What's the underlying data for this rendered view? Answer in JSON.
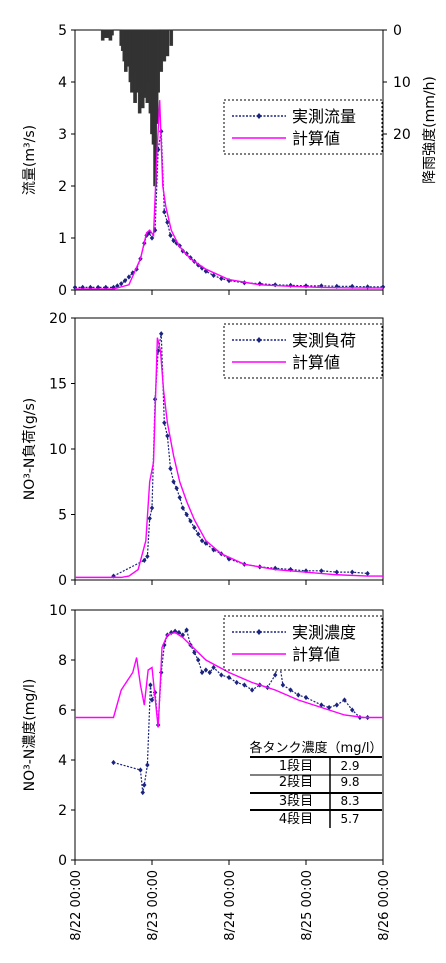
{
  "chart_data": [
    {
      "type": "line",
      "ylabel": "流量(m³/s)",
      "ylim": [
        0,
        5
      ],
      "yticks": [
        "0",
        "1",
        "2",
        "3",
        "4",
        "5"
      ],
      "y2label": "降雨強度(mm/h)",
      "y2lim": [
        0,
        50
      ],
      "y2ticks": [
        "0",
        "10",
        "20"
      ],
      "legend_position": "top-right",
      "series": [
        {
          "name": "実測流量",
          "color": "#1a237e",
          "marker": "diamond",
          "x": [
            0,
            0.1,
            0.2,
            0.3,
            0.4,
            0.5,
            0.55,
            0.6,
            0.65,
            0.7,
            0.75,
            0.8,
            0.85,
            0.9,
            0.93,
            0.96,
            1.0,
            1.04,
            1.08,
            1.12,
            1.16,
            1.2,
            1.24,
            1.28,
            1.32,
            1.36,
            1.4,
            1.45,
            1.5,
            1.55,
            1.6,
            1.65,
            1.7,
            1.8,
            1.9,
            2.0,
            2.2,
            2.4,
            2.6,
            2.8,
            3.0,
            3.2,
            3.4,
            3.6,
            3.8,
            4.0
          ],
          "values": [
            0.05,
            0.05,
            0.05,
            0.05,
            0.05,
            0.05,
            0.08,
            0.12,
            0.18,
            0.25,
            0.33,
            0.4,
            0.6,
            0.9,
            1.05,
            1.1,
            1.0,
            1.15,
            2.7,
            3.05,
            1.5,
            1.3,
            1.05,
            0.95,
            0.9,
            0.85,
            0.75,
            0.7,
            0.62,
            0.55,
            0.48,
            0.42,
            0.36,
            0.28,
            0.22,
            0.18,
            0.14,
            0.12,
            0.1,
            0.09,
            0.08,
            0.08,
            0.07,
            0.07,
            0.06,
            0.06
          ]
        },
        {
          "name": "計算値",
          "color": "#ff00ff",
          "marker": "none",
          "x": [
            0,
            0.5,
            0.7,
            0.85,
            0.93,
            0.97,
            1.02,
            1.06,
            1.1,
            1.14,
            1.18,
            1.25,
            1.35,
            1.5,
            1.7,
            2.0,
            2.4,
            2.8,
            3.2,
            3.6,
            4.0
          ],
          "values": [
            0.02,
            0.02,
            0.1,
            0.6,
            1.1,
            1.15,
            1.05,
            2.5,
            3.65,
            2.0,
            1.6,
            1.15,
            0.85,
            0.6,
            0.4,
            0.2,
            0.1,
            0.07,
            0.05,
            0.04,
            0.04
          ]
        }
      ],
      "rain": {
        "x": [
          0.36,
          0.38,
          0.4,
          0.42,
          0.44,
          0.46,
          0.48,
          0.6,
          0.62,
          0.64,
          0.66,
          0.68,
          0.7,
          0.72,
          0.74,
          0.76,
          0.78,
          0.8,
          0.82,
          0.84,
          0.86,
          0.88,
          0.9,
          0.92,
          0.94,
          0.96,
          0.98,
          1.0,
          1.02,
          1.04,
          1.06,
          1.08,
          1.12,
          1.16,
          1.2,
          1.25
        ],
        "values": [
          2,
          1.5,
          1,
          1.5,
          1,
          2,
          1,
          3,
          4,
          6,
          8,
          5,
          7,
          10,
          12,
          9,
          14,
          8,
          12,
          16,
          11,
          15,
          13,
          12,
          14,
          10,
          16,
          20,
          22,
          30,
          18,
          12,
          8,
          6,
          5,
          3
        ]
      }
    },
    {
      "type": "line",
      "ylabel": "NO³-N負荷(g/s)",
      "ylim": [
        0,
        20
      ],
      "yticks": [
        "0",
        "5",
        "10",
        "15",
        "20"
      ],
      "legend_position": "top-right",
      "series": [
        {
          "name": "実測負荷",
          "color": "#1a237e",
          "marker": "diamond",
          "x": [
            0.5,
            0.9,
            0.94,
            0.97,
            1.0,
            1.04,
            1.08,
            1.12,
            1.16,
            1.2,
            1.24,
            1.28,
            1.32,
            1.36,
            1.4,
            1.45,
            1.5,
            1.55,
            1.6,
            1.65,
            1.7,
            1.8,
            1.9,
            2.0,
            2.2,
            2.4,
            2.6,
            2.8,
            3.0,
            3.2,
            3.4,
            3.6,
            3.8
          ],
          "values": [
            0.3,
            1.5,
            1.8,
            4.7,
            5.5,
            13.8,
            17.5,
            18.8,
            12.0,
            11.0,
            8.5,
            7.5,
            7.0,
            6.3,
            5.5,
            5.0,
            4.5,
            4.0,
            3.5,
            3.0,
            2.8,
            2.3,
            2.0,
            1.6,
            1.2,
            1.0,
            0.9,
            0.8,
            0.7,
            0.7,
            0.6,
            0.6,
            0.5
          ]
        },
        {
          "name": "計算値",
          "color": "#ff00ff",
          "marker": "none",
          "x": [
            0,
            0.6,
            0.7,
            0.82,
            0.92,
            0.97,
            1.02,
            1.07,
            1.11,
            1.15,
            1.2,
            1.28,
            1.36,
            1.45,
            1.55,
            1.7,
            1.9,
            2.2,
            2.6,
            3.0,
            3.4,
            3.8,
            4.0
          ],
          "values": [
            0.2,
            0.2,
            0.3,
            0.8,
            3.0,
            7.5,
            9.0,
            18.5,
            17.5,
            14.5,
            12.0,
            9.5,
            7.5,
            6.0,
            4.6,
            3.0,
            2.0,
            1.2,
            0.8,
            0.6,
            0.4,
            0.3,
            0.3
          ]
        }
      ]
    },
    {
      "type": "line",
      "ylabel": "NO³-N濃度(mg/l)",
      "ylim": [
        0,
        10
      ],
      "yticks": [
        "0",
        "2",
        "4",
        "6",
        "8",
        "10"
      ],
      "xticks": [
        "8/22 00:00",
        "8/23 00:00",
        "8/24 00:00",
        "8/25 00:00",
        "8/26 00:00"
      ],
      "legend_position": "top-right",
      "series": [
        {
          "name": "実測濃度",
          "color": "#1a237e",
          "marker": "diamond",
          "x": [
            0.5,
            0.85,
            0.88,
            0.9,
            0.94,
            0.98,
            1.0,
            1.04,
            1.08,
            1.12,
            1.16,
            1.2,
            1.25,
            1.3,
            1.35,
            1.4,
            1.45,
            1.5,
            1.55,
            1.6,
            1.65,
            1.7,
            1.75,
            1.8,
            1.9,
            2.0,
            2.1,
            2.2,
            2.3,
            2.4,
            2.5,
            2.6,
            2.65,
            2.7,
            2.8,
            2.9,
            3.0,
            3.2,
            3.3,
            3.4,
            3.5,
            3.6,
            3.7,
            3.8
          ],
          "values": [
            3.9,
            3.6,
            2.7,
            3.0,
            3.8,
            7.0,
            6.4,
            6.7,
            5.4,
            7.5,
            8.6,
            9.0,
            9.1,
            9.15,
            9.1,
            9.0,
            9.2,
            8.6,
            8.3,
            8.0,
            7.5,
            7.6,
            7.5,
            7.7,
            7.4,
            7.3,
            7.1,
            7.0,
            6.8,
            7.0,
            6.9,
            7.4,
            8.0,
            7.0,
            6.8,
            6.6,
            6.5,
            6.2,
            6.1,
            6.2,
            6.4,
            6.0,
            5.7,
            5.7
          ]
        },
        {
          "name": "計算値",
          "color": "#ff00ff",
          "marker": "none",
          "x": [
            0,
            0.3,
            0.5,
            0.6,
            0.75,
            0.8,
            0.85,
            0.9,
            0.95,
            1.0,
            1.04,
            1.08,
            1.13,
            1.2,
            1.3,
            1.4,
            1.5,
            1.7,
            2.0,
            2.3,
            2.6,
            2.9,
            3.2,
            3.5,
            3.75,
            4.0
          ],
          "values": [
            5.7,
            5.7,
            5.7,
            6.8,
            7.5,
            8.1,
            7.0,
            6.2,
            7.6,
            7.7,
            6.5,
            5.3,
            8.5,
            9.0,
            9.1,
            8.9,
            8.6,
            8.0,
            7.5,
            7.1,
            6.8,
            6.4,
            6.1,
            5.8,
            5.7,
            5.7
          ]
        }
      ],
      "table": {
        "title": "各タンク濃度（mg/l）",
        "rows": [
          {
            "label": "1段目",
            "value": "2.9"
          },
          {
            "label": "2段目",
            "value": "9.8"
          },
          {
            "label": "3段目",
            "value": "8.3"
          },
          {
            "label": "4段目",
            "value": "5.7"
          }
        ]
      }
    }
  ]
}
